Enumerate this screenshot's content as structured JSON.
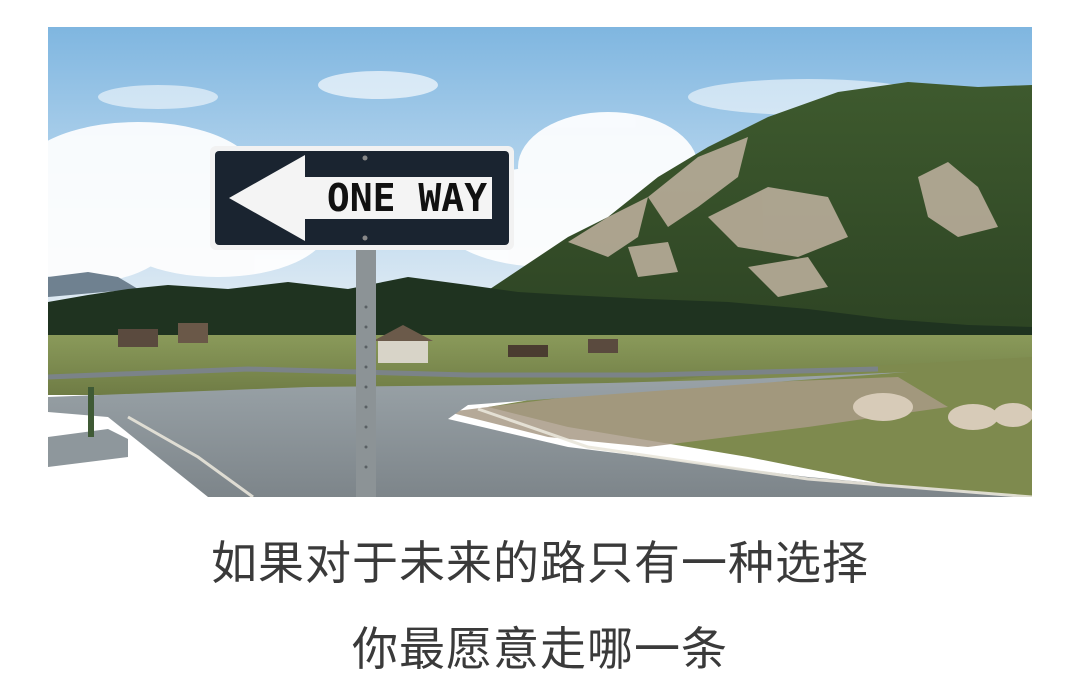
{
  "photo": {
    "sign": {
      "text": "ONE WAY",
      "arrow": "left-arrow-icon"
    }
  },
  "caption": {
    "line1": "如果对于未来的路只有一种选择",
    "line2": "你最愿意走哪一条"
  }
}
